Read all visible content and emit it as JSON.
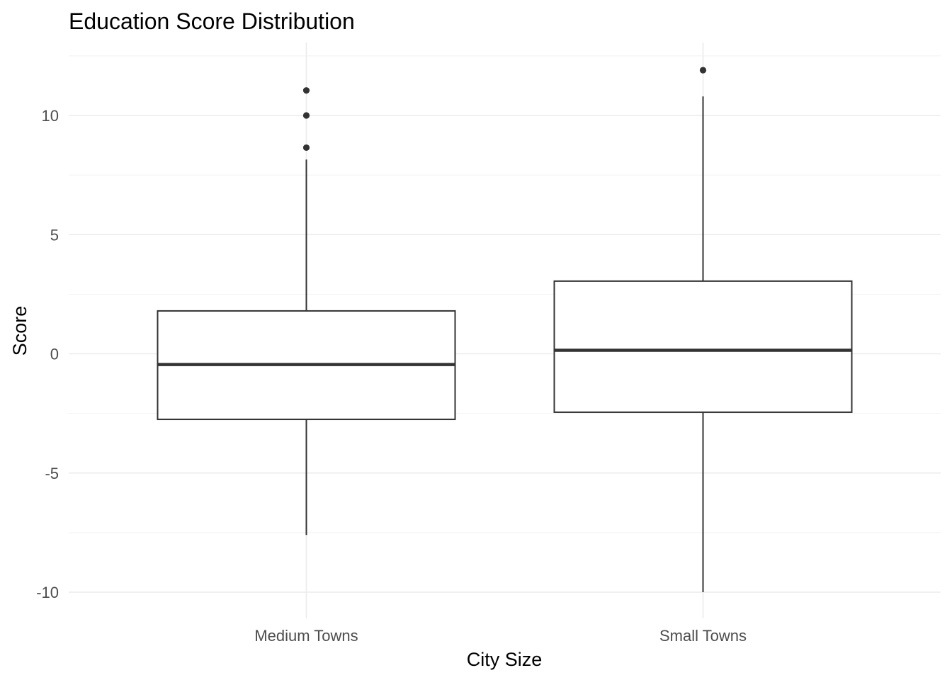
{
  "chart_data": {
    "type": "boxplot",
    "title": "Education Score Distribution",
    "xlabel": "City Size",
    "ylabel": "Score",
    "categories": [
      "Medium Towns",
      "Small Towns"
    ],
    "ylim": [
      -11,
      12.5
    ],
    "yticks": [
      -10,
      -5,
      0,
      5,
      10
    ],
    "ytick_labels": [
      "-10",
      "-5",
      "0",
      "5",
      "10"
    ],
    "grid": true,
    "legend": "none",
    "boxes": [
      {
        "category": "Medium Towns",
        "whisker_low": -7.6,
        "q1": -2.75,
        "median": -0.45,
        "q3": 1.8,
        "whisker_high": 8.15,
        "outliers": [
          8.65,
          10.0,
          11.05
        ]
      },
      {
        "category": "Small Towns",
        "whisker_low": -10.0,
        "q1": -2.45,
        "median": 0.15,
        "q3": 3.05,
        "whisker_high": 10.8,
        "outliers": [
          11.9
        ]
      }
    ],
    "colors": {
      "box_fill": "#ffffff",
      "box_stroke": "#333333",
      "grid": "#ebebeb",
      "tick_text": "#4d4d4d"
    }
  }
}
